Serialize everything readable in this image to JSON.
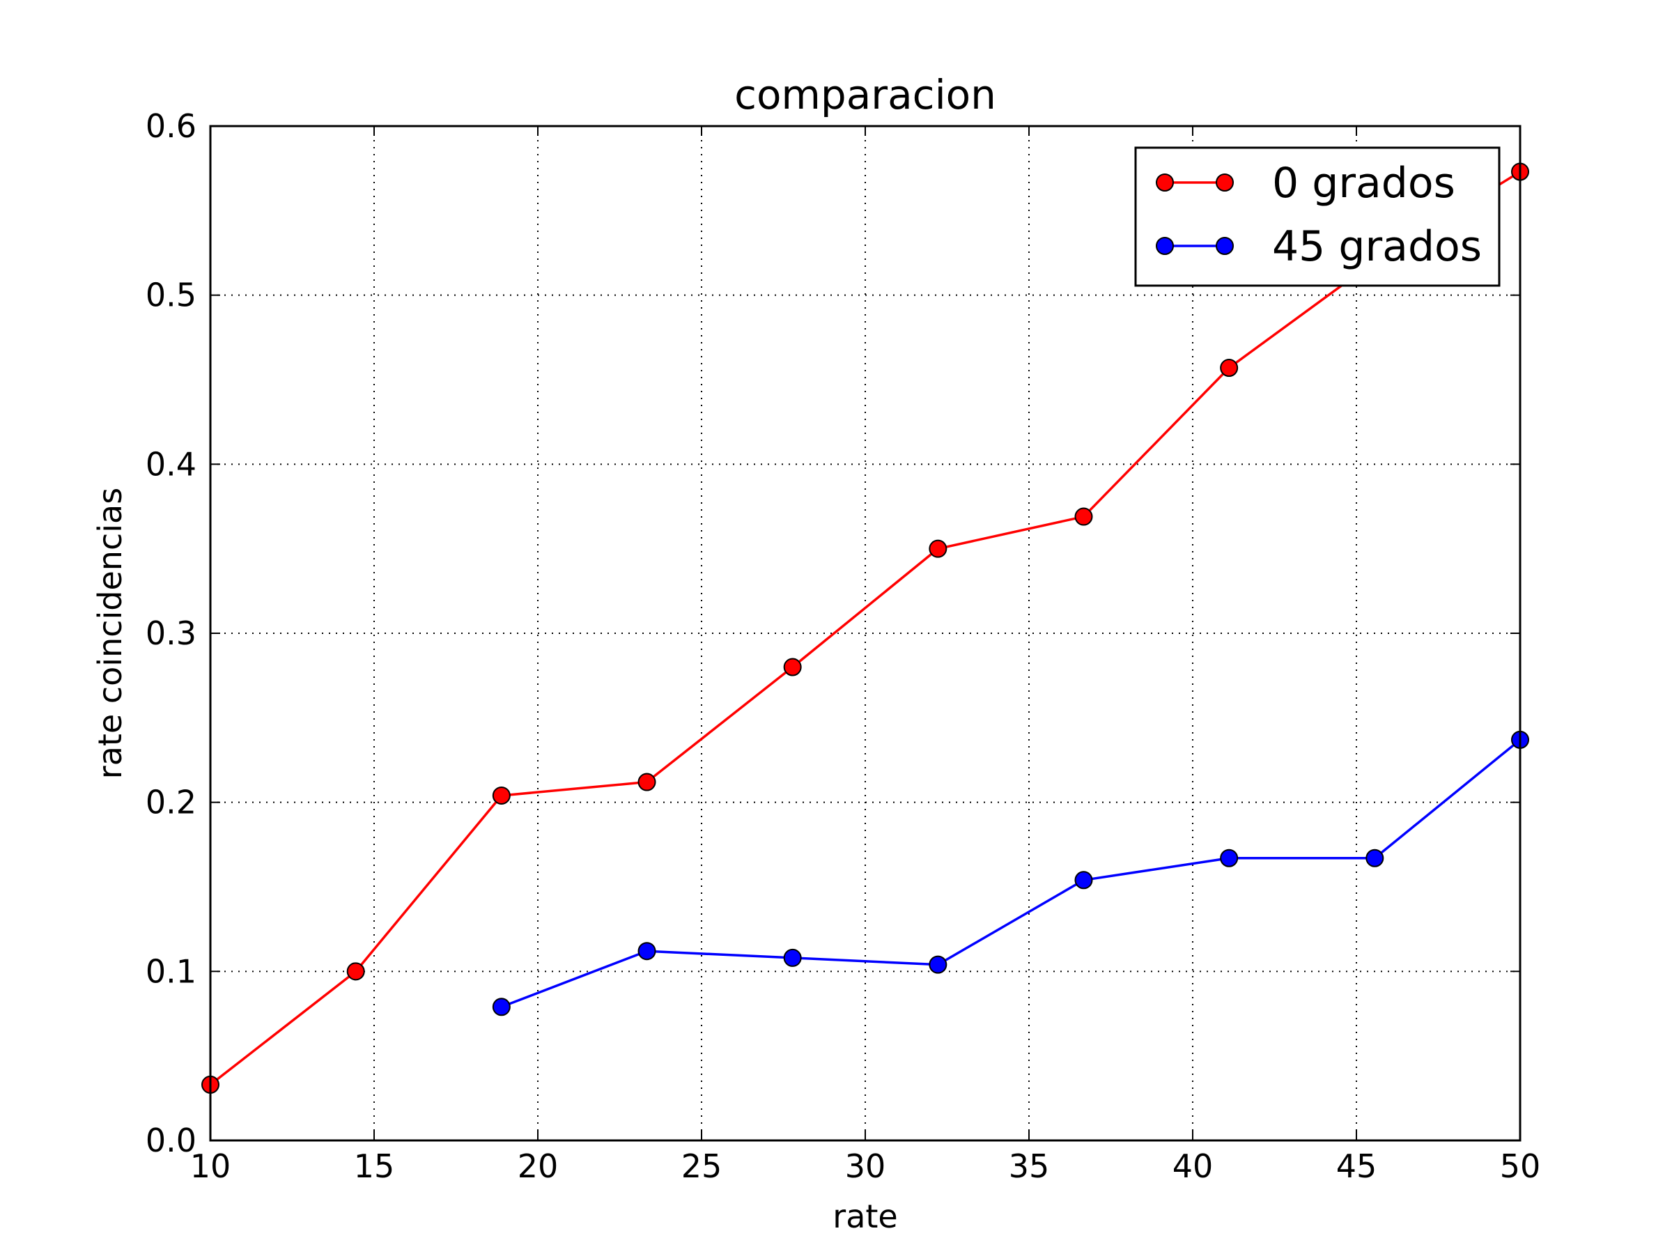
{
  "chart_data": {
    "type": "line",
    "title": "comparacion",
    "xlabel": "rate",
    "ylabel": "rate coincidencias",
    "xlim": [
      10,
      50
    ],
    "ylim": [
      0.0,
      0.6
    ],
    "xticks": [
      10,
      15,
      20,
      25,
      30,
      35,
      40,
      45,
      50
    ],
    "xtick_labels": [
      "10",
      "15",
      "20",
      "25",
      "30",
      "35",
      "40",
      "45",
      "50"
    ],
    "yticks": [
      0.0,
      0.1,
      0.2,
      0.3,
      0.4,
      0.5,
      0.6
    ],
    "ytick_labels": [
      "0.0",
      "0.1",
      "0.2",
      "0.3",
      "0.4",
      "0.5",
      "0.6"
    ],
    "grid": true,
    "legend_position": "top-right",
    "series": [
      {
        "name": "0 grados",
        "color": "#ff0000",
        "marker": "circle",
        "x": [
          10,
          14.44,
          18.89,
          23.33,
          27.78,
          32.22,
          36.67,
          41.11,
          45.56,
          50
        ],
        "y": [
          0.033,
          0.1,
          0.204,
          0.212,
          0.28,
          0.35,
          0.369,
          0.457,
          0.52,
          0.573
        ]
      },
      {
        "name": "45 grados",
        "color": "#0000ff",
        "marker": "circle",
        "x": [
          18.89,
          23.33,
          27.78,
          32.22,
          36.67,
          41.11,
          45.56,
          50
        ],
        "y": [
          0.079,
          0.112,
          0.108,
          0.104,
          0.154,
          0.167,
          0.167,
          0.237
        ]
      }
    ]
  }
}
